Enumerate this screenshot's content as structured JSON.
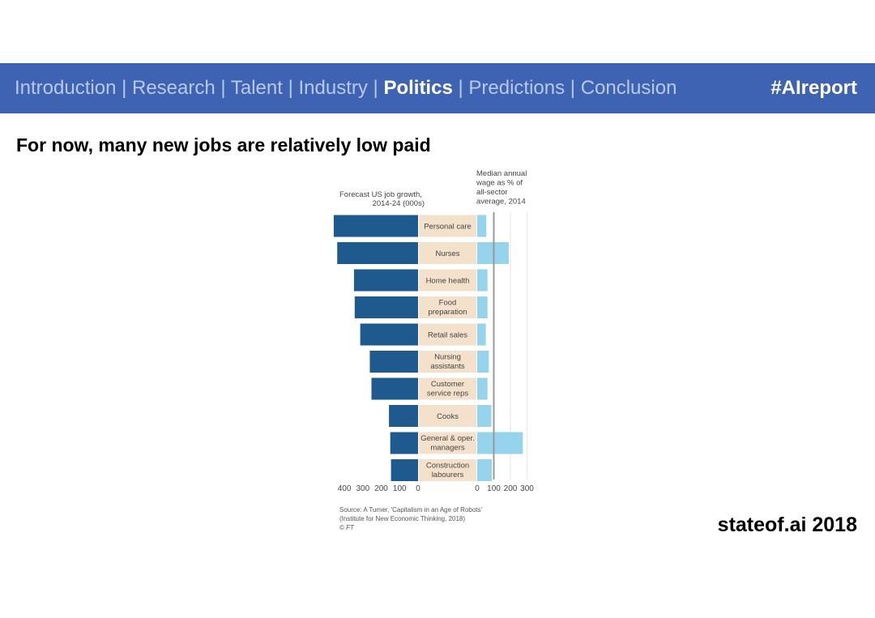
{
  "nav": {
    "items": [
      {
        "label": "Introduction",
        "active": false
      },
      {
        "label": "Research",
        "active": false
      },
      {
        "label": "Talent",
        "active": false
      },
      {
        "label": "Industry",
        "active": false
      },
      {
        "label": "Politics",
        "active": true
      },
      {
        "label": "Predictions",
        "active": false
      },
      {
        "label": "Conclusion",
        "active": false
      }
    ],
    "separator": "|",
    "hashtag": "#AIreport"
  },
  "slide": {
    "title": "For now, many new jobs are relatively low paid",
    "footer": "stateof.ai 2018"
  },
  "colors": {
    "nav_bg": "#3f63b3",
    "left_bar": "#1f5a8e",
    "right_bar": "#96d3ec",
    "label_bg": "#f4e1cc",
    "reference_line": "#999999"
  },
  "chart_data": {
    "type": "bar",
    "categories": [
      [
        "Personal care"
      ],
      [
        "Nurses"
      ],
      [
        "Home health"
      ],
      [
        "Food",
        "preparation"
      ],
      [
        "Retail sales"
      ],
      [
        "Nursing",
        "assistants"
      ],
      [
        "Customer",
        "service reps"
      ],
      [
        "Cooks"
      ],
      [
        "General & oper.",
        "managers"
      ],
      [
        "Construction",
        "labourers"
      ]
    ],
    "series": [
      {
        "name": "Forecast US job growth, 2014-24 (000s)",
        "title_lines": [
          "Forecast US job growth,",
          "2014-24 (000s)"
        ],
        "values": [
          458,
          439,
          348,
          344,
          314,
          262,
          253,
          158,
          151,
          147
        ],
        "xlim": [
          0,
          450
        ],
        "ticks": [
          "400",
          "300",
          "200",
          "100",
          "0"
        ],
        "tick_values": [
          400,
          300,
          200,
          100,
          0
        ]
      },
      {
        "name": "Median annual wage as % of all-sector average, 2014",
        "title_lines": [
          "Median annual",
          "wage as % of",
          "all-sector",
          "average, 2014"
        ],
        "values": [
          55,
          190,
          62,
          62,
          52,
          70,
          62,
          85,
          275,
          88
        ],
        "xlim": [
          0,
          310
        ],
        "ticks": [
          "0",
          "100",
          "200",
          "300"
        ],
        "tick_values": [
          0,
          100,
          200,
          300
        ],
        "reference_value": 100
      }
    ],
    "source": [
      "Source: A Turner, 'Capitalism in an Age of Robots'",
      "(Institute for New Economic Thinking, 2018)",
      "© FT"
    ]
  }
}
